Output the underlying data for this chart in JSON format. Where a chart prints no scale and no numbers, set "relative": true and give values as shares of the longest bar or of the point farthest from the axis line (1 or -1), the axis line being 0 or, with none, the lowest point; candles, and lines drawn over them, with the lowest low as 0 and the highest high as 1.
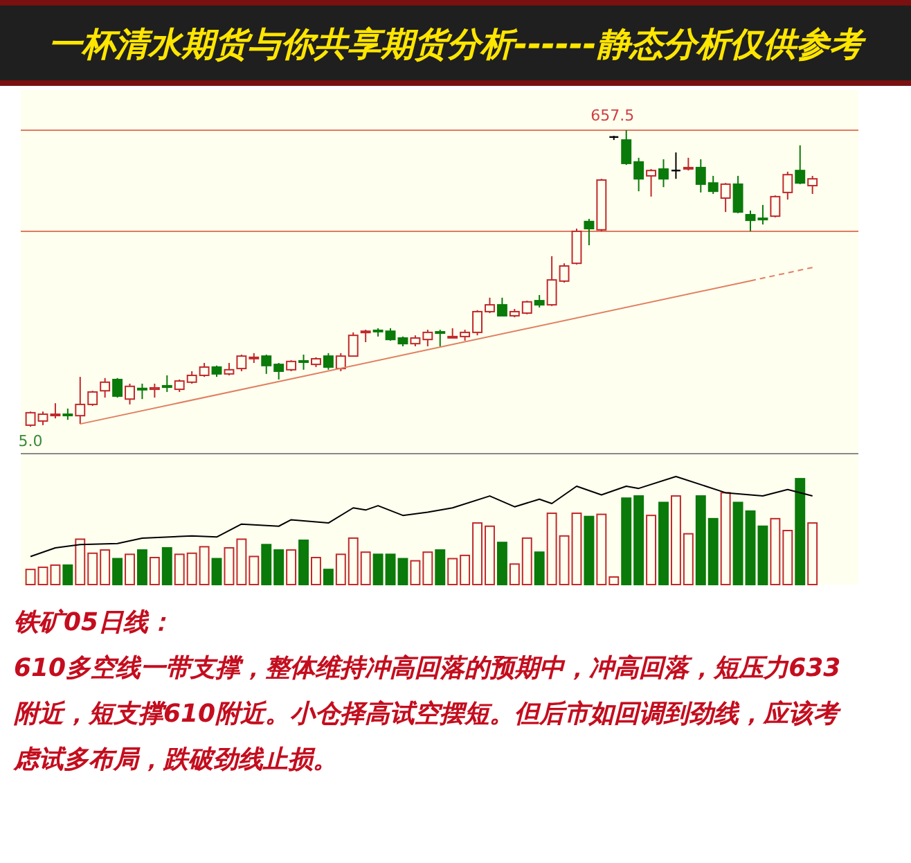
{
  "chart_data": [
    {
      "type": "candlestick",
      "title": "一杯清水期货与你共享期货分析------静态分析仅供参考",
      "relative": true,
      "categories": [
        null,
        null,
        null,
        null,
        null,
        null,
        null,
        null,
        null,
        null,
        null,
        null,
        null,
        null,
        null,
        null,
        null,
        null,
        null,
        null,
        null,
        null,
        null,
        null,
        null,
        null,
        null,
        null,
        null,
        null,
        null,
        null,
        null,
        null,
        null,
        null,
        null,
        null,
        null,
        null,
        null,
        null,
        null,
        null,
        null,
        null,
        null,
        null,
        null,
        null,
        null,
        null,
        null,
        null,
        null,
        null,
        null,
        null,
        null,
        null,
        null,
        null,
        null,
        null
      ],
      "ohlc": [
        [
          0.005,
          0.051,
          0,
          0.047
        ],
        [
          0.019,
          0.051,
          0.005,
          0.042
        ],
        [
          0.04,
          0.079,
          0.028,
          0.042
        ],
        [
          0.042,
          0.061,
          0.023,
          0.04
        ],
        [
          0.037,
          0.168,
          0.009,
          0.075
        ],
        [
          0.075,
          0.121,
          0.07,
          0.117
        ],
        [
          0.121,
          0.164,
          0.098,
          0.15
        ],
        [
          0.159,
          0.164,
          0.098,
          0.103
        ],
        [
          0.093,
          0.145,
          0.075,
          0.136
        ],
        [
          0.129,
          0.145,
          0.093,
          0.126
        ],
        [
          0.126,
          0.145,
          0.098,
          0.131
        ],
        [
          0.138,
          0.173,
          0.117,
          0.133
        ],
        [
          0.126,
          0.159,
          0.117,
          0.154
        ],
        [
          0.15,
          0.187,
          0.145,
          0.173
        ],
        [
          0.173,
          0.215,
          0.168,
          0.201
        ],
        [
          0.201,
          0.206,
          0.168,
          0.178
        ],
        [
          0.178,
          0.215,
          0.173,
          0.192
        ],
        [
          0.196,
          0.243,
          0.187,
          0.238
        ],
        [
          0.231,
          0.248,
          0.215,
          0.234
        ],
        [
          0.238,
          0.243,
          0.178,
          0.206
        ],
        [
          0.21,
          0.215,
          0.159,
          0.187
        ],
        [
          0.192,
          0.224,
          0.187,
          0.22
        ],
        [
          0.222,
          0.243,
          0.192,
          0.22
        ],
        [
          0.21,
          0.234,
          0.201,
          0.229
        ],
        [
          0.238,
          0.248,
          0.192,
          0.201
        ],
        [
          0.196,
          0.248,
          0.187,
          0.238
        ],
        [
          0.238,
          0.318,
          0.238,
          0.308
        ],
        [
          0.32,
          0.327,
          0.285,
          0.322
        ],
        [
          0.325,
          0.332,
          0.304,
          0.322
        ],
        [
          0.322,
          0.332,
          0.29,
          0.294
        ],
        [
          0.299,
          0.304,
          0.271,
          0.28
        ],
        [
          0.28,
          0.308,
          0.271,
          0.299
        ],
        [
          0.294,
          0.327,
          0.271,
          0.318
        ],
        [
          0.32,
          0.327,
          0.271,
          0.318
        ],
        [
          0.301,
          0.332,
          0.299,
          0.304
        ],
        [
          0.304,
          0.327,
          0.29,
          0.318
        ],
        [
          0.318,
          0.393,
          0.308,
          0.388
        ],
        [
          0.388,
          0.435,
          0.383,
          0.411
        ],
        [
          0.411,
          0.435,
          0.374,
          0.374
        ],
        [
          0.374,
          0.397,
          0.369,
          0.388
        ],
        [
          0.383,
          0.425,
          0.379,
          0.421
        ],
        [
          0.425,
          0.444,
          0.402,
          0.411
        ],
        [
          0.411,
          0.575,
          0.407,
          0.495
        ],
        [
          0.491,
          0.551,
          0.486,
          0.542
        ],
        [
          0.551,
          0.668,
          0.547,
          0.659
        ],
        [
          0.692,
          0.701,
          0.612,
          0.668
        ],
        [
          0.664,
          0.836,
          0.659,
          0.832
        ],
        [
          0.977,
          0.981,
          0.967,
          0.977
        ],
        [
          0.967,
          1,
          0.883,
          0.888
        ],
        [
          0.893,
          0.907,
          0.794,
          0.836
        ],
        [
          0.846,
          0.869,
          0.776,
          0.864
        ],
        [
          0.869,
          0.902,
          0.808,
          0.836
        ],
        [
          0.864,
          0.925,
          0.836,
          0.864
        ],
        [
          0.871,
          0.907,
          0.864,
          0.874
        ],
        [
          0.874,
          0.902,
          0.79,
          0.818
        ],
        [
          0.822,
          0.846,
          0.785,
          0.794
        ],
        [
          0.771,
          0.822,
          0.724,
          0.818
        ],
        [
          0.818,
          0.846,
          0.72,
          0.724
        ],
        [
          0.715,
          0.729,
          0.659,
          0.696
        ],
        [
          0.703,
          0.748,
          0.682,
          0.701
        ],
        [
          0.71,
          0.78,
          0.706,
          0.776
        ],
        [
          0.79,
          0.86,
          0.766,
          0.85
        ],
        [
          0.864,
          0.949,
          0.818,
          0.822
        ],
        [
          0.813,
          0.846,
          0.785,
          0.836
        ]
      ],
      "colors": [
        "#c0292b",
        "#c0292b",
        "#c0292b",
        "#0a7a0a",
        "#c0292b",
        "#c0292b",
        "#c0292b",
        "#0a7a0a",
        "#c0292b",
        "#0a7a0a",
        "#c0292b",
        "#0a7a0a",
        "#c0292b",
        "#c0292b",
        "#c0292b",
        "#0a7a0a",
        "#c0292b",
        "#c0292b",
        "#c0292b",
        "#0a7a0a",
        "#0a7a0a",
        "#c0292b",
        "#0a7a0a",
        "#c0292b",
        "#0a7a0a",
        "#c0292b",
        "#c0292b",
        "#c0292b",
        "#0a7a0a",
        "#0a7a0a",
        "#0a7a0a",
        "#c0292b",
        "#c0292b",
        "#0a7a0a",
        "#c0292b",
        "#c0292b",
        "#c0292b",
        "#c0292b",
        "#0a7a0a",
        "#c0292b",
        "#c0292b",
        "#0a7a0a",
        "#c0292b",
        "#c0292b",
        "#c0292b",
        "#0a7a0a",
        "#c0292b",
        "#000000",
        "#0a7a0a",
        "#0a7a0a",
        "#c0292b",
        "#0a7a0a",
        "#000000",
        "#c0292b",
        "#0a7a0a",
        "#0a7a0a",
        "#c0292b",
        "#0a7a0a",
        "#0a7a0a",
        "#0a7a0a",
        "#c0292b",
        "#c0292b",
        "#0a7a0a",
        "#c0292b"
      ],
      "series": [
        {
          "type": "line",
          "values": [
            null,
            null,
            null,
            null,
            0.009,
            null,
            null,
            null,
            null,
            null,
            null,
            null,
            null,
            null,
            null,
            null,
            null,
            null,
            null,
            null,
            null,
            null,
            null,
            null,
            null,
            null,
            null,
            null,
            null,
            null,
            null,
            null,
            null,
            null,
            null,
            null,
            null,
            null,
            null,
            null,
            null,
            null,
            null,
            null,
            null,
            null,
            null,
            null,
            null,
            null,
            null,
            null,
            null,
            null,
            null,
            null,
            null,
            null,
            0.492,
            null,
            null,
            null,
            null,
            null
          ],
          "color": "#e08060",
          "line_style": "solid"
        },
        {
          "type": "line",
          "values": [
            null,
            null,
            null,
            null,
            null,
            null,
            null,
            null,
            null,
            null,
            null,
            null,
            null,
            null,
            null,
            null,
            null,
            null,
            null,
            null,
            null,
            null,
            null,
            null,
            null,
            null,
            null,
            null,
            null,
            null,
            null,
            null,
            null,
            null,
            null,
            null,
            null,
            null,
            null,
            null,
            null,
            null,
            null,
            null,
            null,
            null,
            null,
            null,
            null,
            null,
            null,
            null,
            null,
            null,
            null,
            null,
            null,
            null,
            0.492,
            null,
            null,
            null,
            null,
            0.537
          ],
          "color": "#e08060",
          "line_style": "dashed"
        }
      ],
      "ref_lines": [
        {
          "axis": "y",
          "value": 1,
          "color": "#e07a5f"
        },
        {
          "axis": "y",
          "value": 0.659,
          "color": "#e07a5f"
        }
      ],
      "annotations": [
        "657.5",
        "5.0"
      ]
    },
    {
      "type": "bar",
      "relative": true,
      "categories": [
        null,
        null,
        null,
        null,
        null,
        null,
        null,
        null,
        null,
        null,
        null,
        null,
        null,
        null,
        null,
        null,
        null,
        null,
        null,
        null,
        null,
        null,
        null,
        null,
        null,
        null,
        null,
        null,
        null,
        null,
        null,
        null,
        null,
        null,
        null,
        null,
        null,
        null,
        null,
        null,
        null,
        null,
        null,
        null,
        null,
        null,
        null,
        null,
        null,
        null,
        null,
        null,
        null,
        null,
        null,
        null,
        null,
        null,
        null,
        null,
        null,
        null,
        null,
        null
      ],
      "series": [
        {
          "values": [
            0.14,
            0.16,
            0.18,
            0.18,
            0.42,
            0.29,
            0.32,
            0.24,
            0.28,
            0.32,
            0.25,
            0.34,
            0.28,
            0.29,
            0.35,
            0.24,
            0.34,
            0.42,
            0.26,
            0.37,
            0.32,
            0.32,
            0.41,
            0.25,
            0.14,
            0.28,
            0.43,
            0.3,
            0.28,
            0.28,
            0.24,
            0.22,
            0.3,
            0.32,
            0.24,
            0.27,
            0.57,
            0.54,
            0.39,
            0.19,
            0.43,
            0.3,
            0.66,
            0.45,
            0.66,
            0.63,
            0.65,
            0.07,
            0.8,
            0.82,
            0.64,
            0.76,
            0.82,
            0.47,
            0.82,
            0.61,
            0.85,
            0.76,
            0.68,
            0.54,
            0.61,
            0.5,
            0.98,
            0.57
          ],
          "colors": [
            "#c0292b",
            "#c0292b",
            "#c0292b",
            "#0a7a0a",
            "#c0292b",
            "#c0292b",
            "#c0292b",
            "#0a7a0a",
            "#c0292b",
            "#0a7a0a",
            "#c0292b",
            "#0a7a0a",
            "#c0292b",
            "#c0292b",
            "#c0292b",
            "#0a7a0a",
            "#c0292b",
            "#c0292b",
            "#c0292b",
            "#0a7a0a",
            "#0a7a0a",
            "#c0292b",
            "#0a7a0a",
            "#c0292b",
            "#0a7a0a",
            "#c0292b",
            "#c0292b",
            "#c0292b",
            "#0a7a0a",
            "#0a7a0a",
            "#0a7a0a",
            "#c0292b",
            "#c0292b",
            "#0a7a0a",
            "#c0292b",
            "#c0292b",
            "#c0292b",
            "#c0292b",
            "#0a7a0a",
            "#c0292b",
            "#c0292b",
            "#0a7a0a",
            "#c0292b",
            "#c0292b",
            "#c0292b",
            "#0a7a0a",
            "#c0292b",
            "#c0292b",
            "#0a7a0a",
            "#0a7a0a",
            "#c0292b",
            "#0a7a0a",
            "#c0292b",
            "#c0292b",
            "#0a7a0a",
            "#0a7a0a",
            "#c0292b",
            "#0a7a0a",
            "#0a7a0a",
            "#0a7a0a",
            "#c0292b",
            "#c0292b",
            "#0a7a0a",
            "#c0292b"
          ]
        },
        {
          "type": "line",
          "values": [
            0.26,
            null,
            0.34,
            null,
            0.37,
            null,
            null,
            0.38,
            null,
            0.43,
            null,
            null,
            null,
            0.45,
            null,
            0.44,
            null,
            0.56,
            null,
            null,
            0.54,
            0.6,
            null,
            null,
            0.57,
            null,
            0.71,
            0.69,
            0.73,
            null,
            0.64,
            null,
            0.67,
            null,
            0.71,
            null,
            null,
            0.82,
            null,
            0.72,
            null,
            0.79,
            0.75,
            null,
            0.91,
            null,
            0.83,
            null,
            0.91,
            0.89,
            null,
            null,
            1,
            null,
            null,
            null,
            0.85,
            null,
            null,
            0.82,
            null,
            0.88,
            null,
            0.82
          ],
          "color": "#000000"
        }
      ],
      "annotations": [
        "铁矿05日线：",
        "610多空线一带支撑，整体维持冲高回落的预期中，冲高回落，短压力633",
        "附近，短支撑610附近。小仓择高试空摆短。但后市如回调到劲线，应该考",
        "虑试多布局，跌破劲线止损。"
      ]
    }
  ]
}
